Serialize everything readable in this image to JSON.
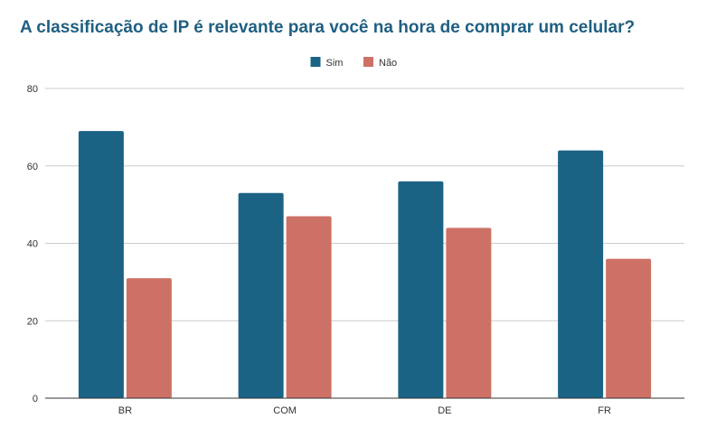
{
  "chart_data": {
    "type": "bar",
    "title": "A classificação de IP é relevante para você na hora de comprar um celular?",
    "xlabel": "",
    "ylabel": "",
    "categories": [
      "BR",
      "COM",
      "DE",
      "FR"
    ],
    "series": [
      {
        "name": "Sim",
        "color": "#1a6385",
        "values": [
          69,
          53,
          56,
          64
        ]
      },
      {
        "name": "Não",
        "color": "#cd7167",
        "values": [
          31,
          47,
          44,
          36
        ]
      }
    ],
    "ylim": [
      0,
      80
    ],
    "yticks": [
      0,
      20,
      40,
      60,
      80
    ],
    "grid": true,
    "legend_position": "top-center"
  }
}
